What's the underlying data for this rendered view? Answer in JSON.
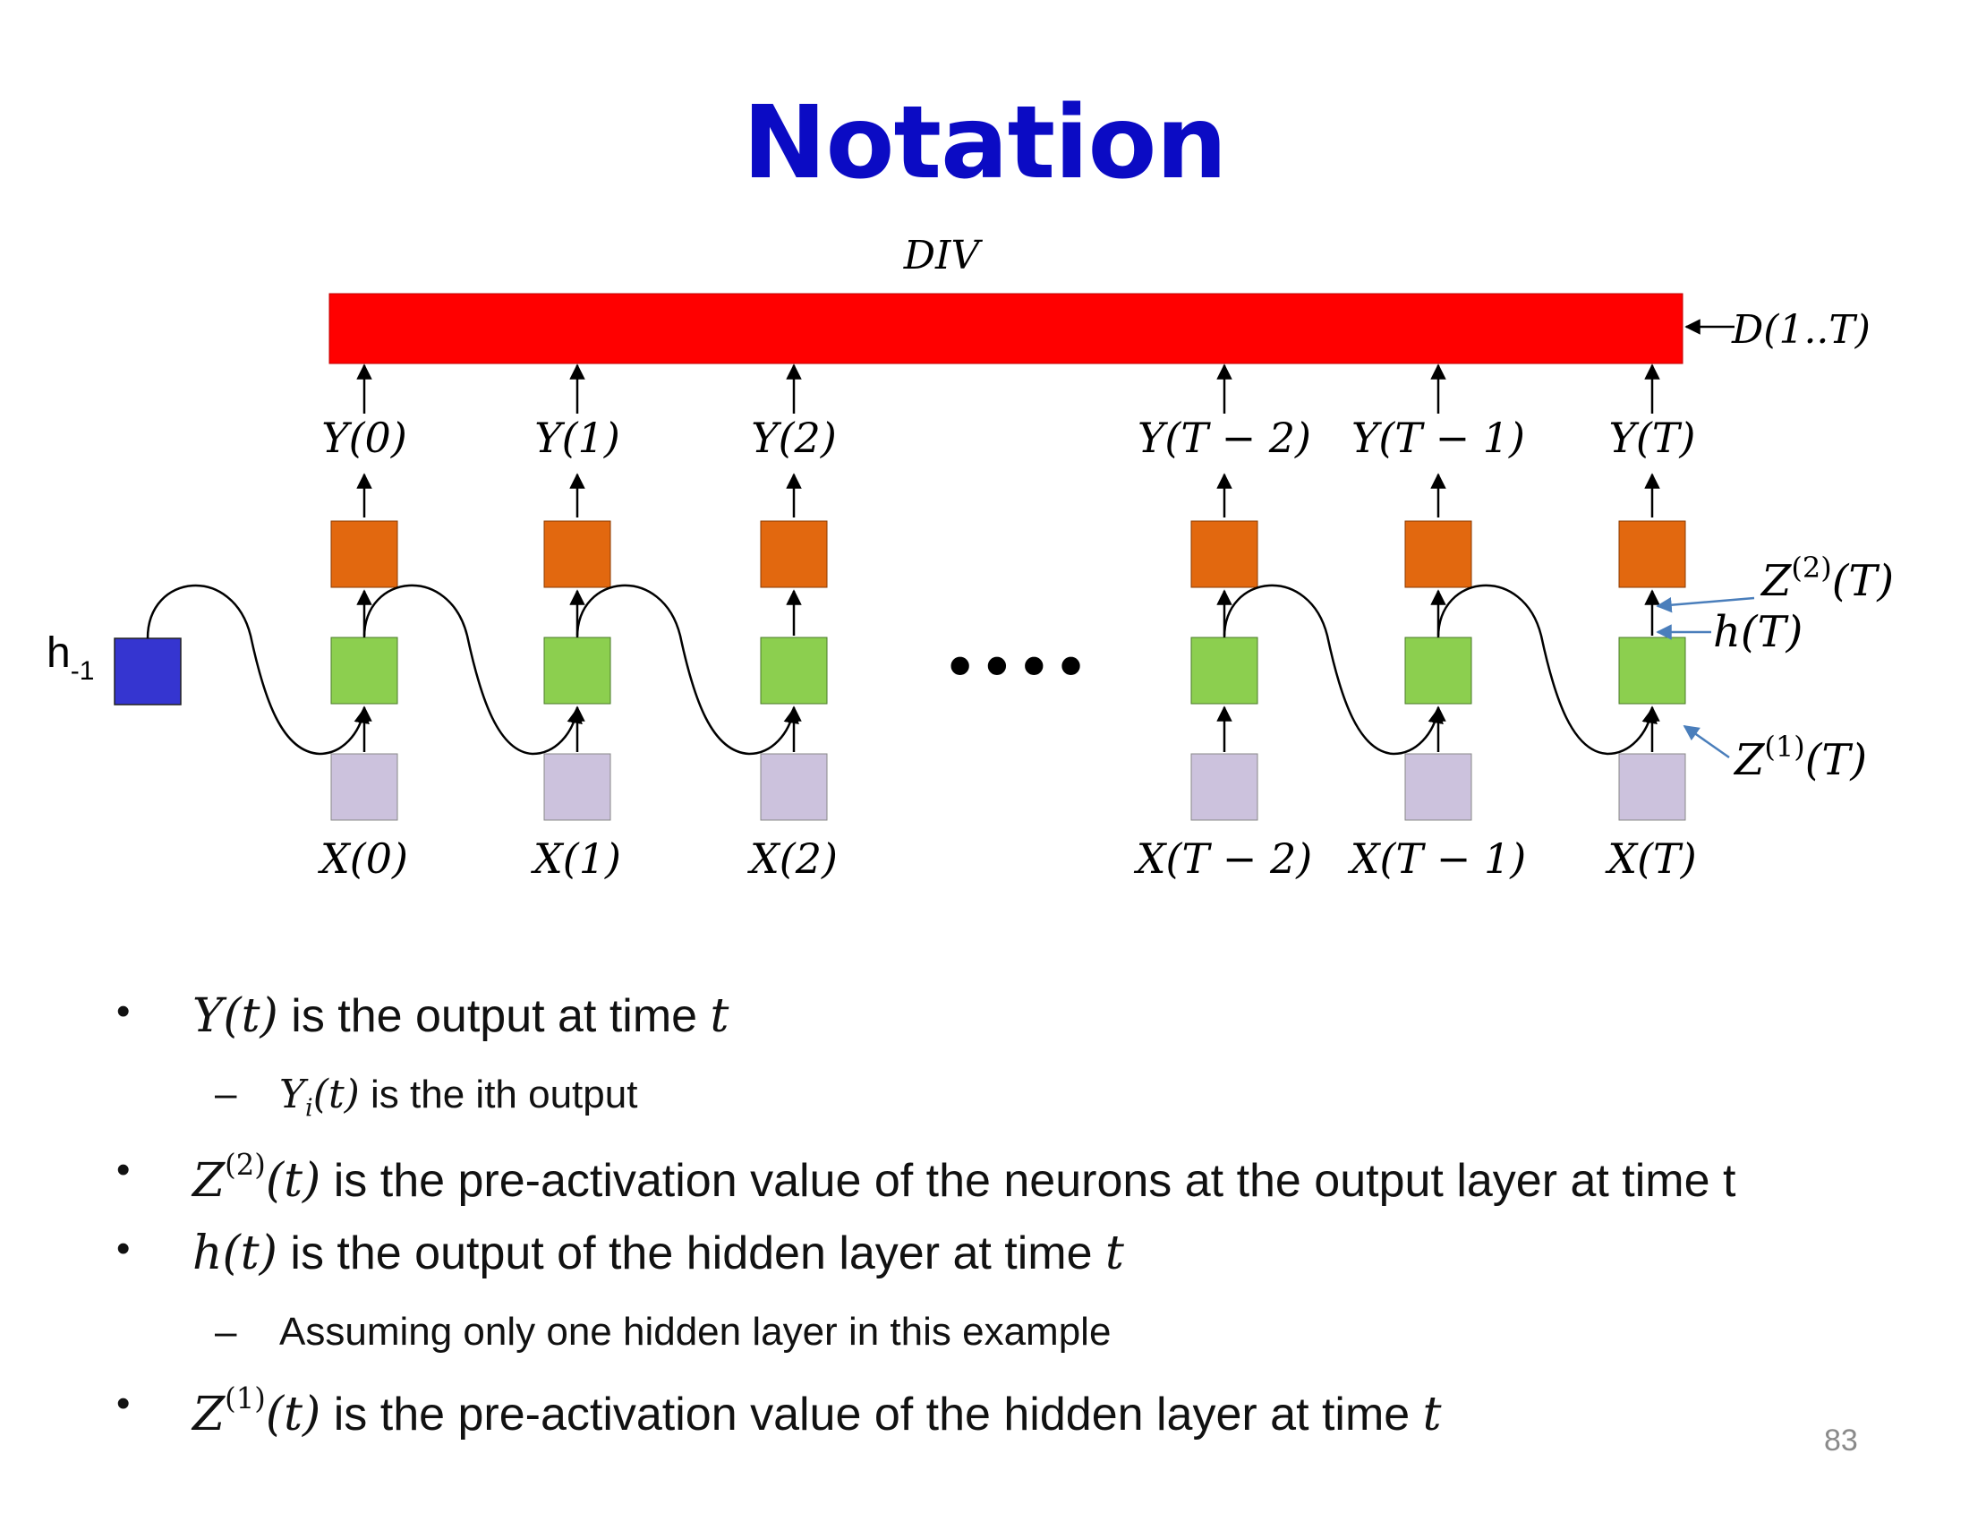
{
  "title": "Notation",
  "diagram": {
    "div_label": "DIV",
    "d_label": "D(1..T)",
    "h_minus1": {
      "base": "h",
      "sub": "-1"
    },
    "y_labels": [
      "Y(0)",
      "Y(1)",
      "Y(2)",
      "Y(T − 2)",
      "Y(T − 1)",
      "Y(T)"
    ],
    "x_labels": [
      "X(0)",
      "X(1)",
      "X(2)",
      "X(T − 2)",
      "X(T − 1)",
      "X(T)"
    ],
    "ellipsis": "••••",
    "annotations": {
      "z2": {
        "base": "Z",
        "sup": "(2)",
        "arg": "(T)"
      },
      "h": "h(T)",
      "z1": {
        "base": "Z",
        "sup": "(1)",
        "arg": "(T)"
      }
    },
    "colors": {
      "div_bar": "#ff0000",
      "output_box": "#e2680f",
      "hidden_box": "#8ccf4f",
      "input_box": "#ccc2dd",
      "h0_box": "#3535d0",
      "annotation_arrow": "#4a7ebb"
    }
  },
  "bullets": {
    "b1": {
      "math": "Y(t)",
      "text": " is the output at time ",
      "var": "t"
    },
    "s1": {
      "math_base": "Y",
      "math_sub": "i",
      "math_arg": "(t)",
      "text": " is the ith output"
    },
    "b2": {
      "math_base": "Z",
      "math_sup": "(2)",
      "math_arg": "(t)",
      "text": " is the pre-activation value of the neurons at the output layer at time t"
    },
    "b3": {
      "math": "h(t)",
      "text": " is the output of the hidden layer at time ",
      "var": "t"
    },
    "s2": {
      "text": "Assuming only one hidden layer in this example"
    },
    "b4": {
      "math_base": "Z",
      "math_sup": "(1)",
      "math_arg": "(t)",
      "text": " is the pre-activation value of the hidden layer at time ",
      "var": "t"
    },
    "bullet_glyph": "•",
    "dash_glyph": "–"
  },
  "page_number": "83"
}
